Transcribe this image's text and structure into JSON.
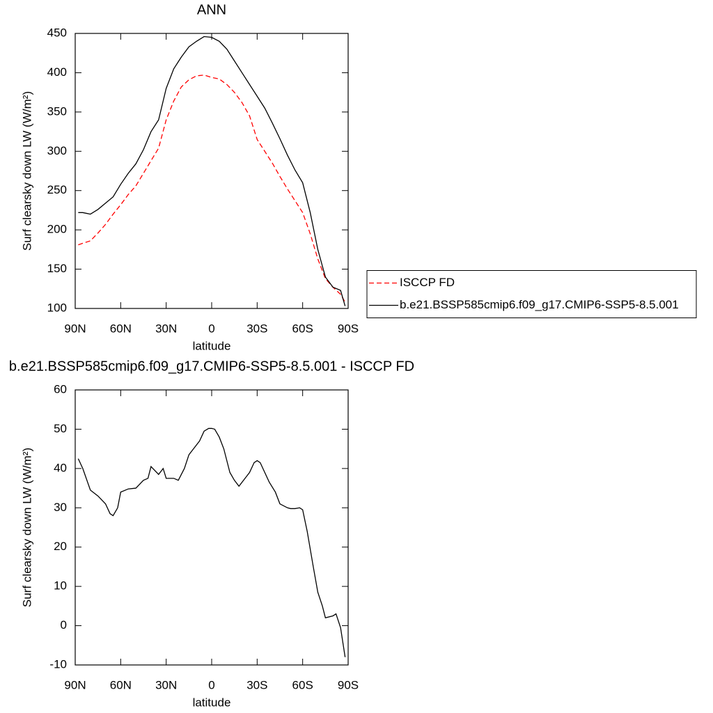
{
  "chart_data": [
    {
      "type": "line",
      "title": "ANN",
      "xlabel": "latitude",
      "ylabel": "Surf clearsky down LW (W/m²)",
      "x": [
        88,
        85,
        80,
        75,
        70,
        65,
        60,
        55,
        50,
        45,
        40,
        35,
        30,
        25,
        20,
        15,
        10,
        5,
        0,
        -5,
        -10,
        -15,
        -20,
        -25,
        -30,
        -35,
        -40,
        -45,
        -50,
        -55,
        -60,
        -65,
        -70,
        -75,
        -80,
        -85,
        -88
      ],
      "series": [
        {
          "name": "ISCCP FD",
          "color": "#ff0000",
          "dashed": true,
          "values": [
            181,
            183,
            186,
            196,
            207,
            220,
            232,
            245,
            256,
            272,
            288,
            304,
            340,
            364,
            382,
            391,
            396,
            397,
            394,
            392,
            385,
            375,
            362,
            345,
            315,
            300,
            285,
            268,
            252,
            237,
            222,
            195,
            163,
            138,
            127,
            118,
            108
          ]
        },
        {
          "name": "b.e21.BSSP585cmip6.f09_g17.CMIP6-SSP5-8.5.001",
          "color": "#000000",
          "dashed": false,
          "values": [
            222,
            222,
            220,
            226,
            234,
            242,
            258,
            272,
            284,
            302,
            325,
            340,
            380,
            405,
            420,
            433,
            440,
            446,
            445,
            440,
            430,
            415,
            400,
            385,
            370,
            355,
            336,
            316,
            295,
            276,
            260,
            222,
            175,
            140,
            127,
            123,
            103
          ]
        }
      ],
      "xlim": [
        90,
        -90
      ],
      "xticks": [
        {
          "value": 90,
          "label": "90N"
        },
        {
          "value": 60,
          "label": "60N"
        },
        {
          "value": 30,
          "label": "30N"
        },
        0,
        {
          "value": -30,
          "label": "30S"
        },
        {
          "value": -60,
          "label": "60S"
        },
        {
          "value": -90,
          "label": "90S"
        }
      ],
      "ylim": [
        100,
        450
      ],
      "yticks": [
        100,
        150,
        200,
        250,
        300,
        350,
        400,
        450
      ],
      "legend": "right"
    },
    {
      "type": "line",
      "title": "b.e21.BSSP585cmip6.f09_g17.CMIP6-SSP5-8.5.001 - ISCCP FD",
      "xlabel": "latitude",
      "ylabel": "Surf clearsky down LW (W/m²)",
      "x": [
        88,
        85,
        80,
        75,
        70,
        67,
        65,
        62,
        60,
        55,
        50,
        45,
        42,
        40,
        35,
        32,
        30,
        25,
        22,
        18,
        15,
        12,
        8,
        5,
        2,
        0,
        -2,
        -5,
        -8,
        -12,
        -15,
        -18,
        -22,
        -25,
        -28,
        -30,
        -32,
        -35,
        -38,
        -42,
        -45,
        -50,
        -52,
        -55,
        -58,
        -60,
        -63,
        -67,
        -70,
        -73,
        -75,
        -80,
        -82,
        -85,
        -88
      ],
      "series": [
        {
          "color": "#000000",
          "dashed": false,
          "values": [
            42.5,
            40,
            34.5,
            33,
            31,
            28.5,
            28,
            30,
            34,
            34.8,
            35,
            37,
            37.5,
            40.5,
            38.5,
            40,
            37.5,
            37.5,
            37,
            40,
            43.5,
            45,
            47,
            49.5,
            50.2,
            50.2,
            50,
            48,
            45,
            39,
            37,
            35.5,
            37.5,
            39,
            41.5,
            42,
            41.5,
            39,
            36.5,
            34,
            31,
            30,
            29.8,
            29.8,
            30,
            29.5,
            24,
            15,
            8.5,
            5,
            2,
            2.5,
            3,
            -0.5,
            -8
          ]
        }
      ],
      "xlim": [
        90,
        -90
      ],
      "xticks": [
        {
          "value": 90,
          "label": "90N"
        },
        {
          "value": 60,
          "label": "60N"
        },
        {
          "value": 30,
          "label": "30N"
        },
        0,
        {
          "value": -30,
          "label": "30S"
        },
        {
          "value": -60,
          "label": "60S"
        },
        {
          "value": -90,
          "label": "90S"
        }
      ],
      "ylim": [
        -10,
        60
      ],
      "yticks": [
        -10,
        0,
        10,
        20,
        30,
        40,
        50,
        60
      ]
    }
  ]
}
